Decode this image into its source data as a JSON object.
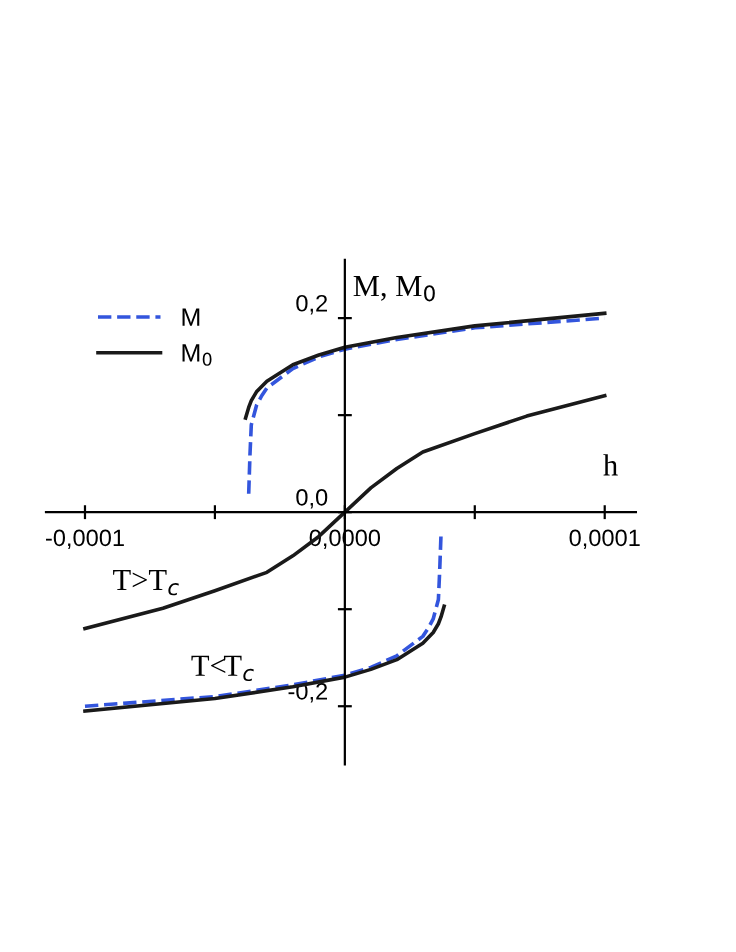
{
  "chart_data": {
    "type": "line",
    "xlabel": "h",
    "ylabel": "M, M$_{0}$",
    "xlim": [
      -0.000115,
      0.000112
    ],
    "ylim": [
      -0.26,
      0.26
    ],
    "xticks": [
      {
        "value": -0.0001,
        "label": "-0,0001"
      },
      {
        "value": -5e-05,
        "label": null
      },
      {
        "value": 0,
        "label": "0,0000"
      },
      {
        "value": 5e-05,
        "label": null
      },
      {
        "value": 0.0001,
        "label": "0,0001"
      }
    ],
    "yticks": [
      {
        "value": -0.2,
        "label": "-0,2"
      },
      {
        "value": -0.1,
        "label": null
      },
      {
        "value": 0,
        "label": "0,0"
      },
      {
        "value": 0.1,
        "label": null
      },
      {
        "value": 0.2,
        "label": "0,2"
      }
    ],
    "legend": "top left",
    "grid": false,
    "marker": "none",
    "series": [
      {
        "name": "M",
        "color": "#3355dd",
        "line_style": "dashed",
        "x": [
          -3.7e-05,
          -3.65e-05,
          -3.6e-05,
          -3.4e-05,
          -3.2e-05,
          -3e-05,
          -2e-05,
          -1e-05,
          0,
          2e-05,
          5e-05,
          0.0001
        ],
        "values": [
          0.019,
          0.06,
          0.09,
          0.11,
          0.12,
          0.128,
          0.148,
          0.16,
          0.168,
          0.178,
          0.19,
          0.2
        ]
      },
      {
        "name": "M$_{0}$",
        "color": "#1a1a1a",
        "line_style": "solid",
        "x": [
          -3.82e-05,
          -3.7e-05,
          -3.6e-05,
          -3.4e-05,
          -3e-05,
          -2e-05,
          -1e-05,
          0,
          2e-05,
          5e-05,
          0.0001
        ],
        "values": [
          0.097,
          0.108,
          0.115,
          0.124,
          0.135,
          0.152,
          0.162,
          0.17,
          0.18,
          0.192,
          0.205
        ]
      },
      {
        "color": "#3355dd",
        "line_style": "dashed",
        "x": [
          -0.0001,
          -5e-05,
          -2e-05,
          0,
          1e-05,
          2e-05,
          3e-05,
          3.2e-05,
          3.4e-05,
          3.6e-05,
          3.65e-05,
          3.7e-05
        ],
        "values": [
          -0.2,
          -0.19,
          -0.178,
          -0.168,
          -0.16,
          -0.148,
          -0.128,
          -0.12,
          -0.11,
          -0.09,
          -0.06,
          -0.023
        ]
      },
      {
        "color": "#1a1a1a",
        "line_style": "solid",
        "x": [
          -0.0001,
          -5e-05,
          -2e-05,
          0,
          1e-05,
          2e-05,
          3e-05,
          3.4e-05,
          3.6e-05,
          3.7e-05,
          3.82e-05
        ],
        "values": [
          -0.205,
          -0.192,
          -0.18,
          -0.17,
          -0.162,
          -0.152,
          -0.135,
          -0.124,
          -0.115,
          -0.108,
          -0.097
        ]
      },
      {
        "color": "#1a1a1a",
        "line_style": "solid",
        "x": [
          -0.0001,
          -7e-05,
          -5e-05,
          -3e-05,
          -2e-05,
          -1e-05,
          0,
          1e-05,
          2e-05,
          3e-05,
          5e-05,
          7e-05,
          0.0001
        ],
        "values": [
          -0.12,
          -0.099,
          -0.081,
          -0.062,
          -0.045,
          -0.025,
          0,
          0.025,
          0.045,
          0.062,
          0.081,
          0.099,
          0.12
        ]
      }
    ],
    "annotations": [
      "T>T$_{c}$",
      "T<T$_{c}$"
    ]
  }
}
